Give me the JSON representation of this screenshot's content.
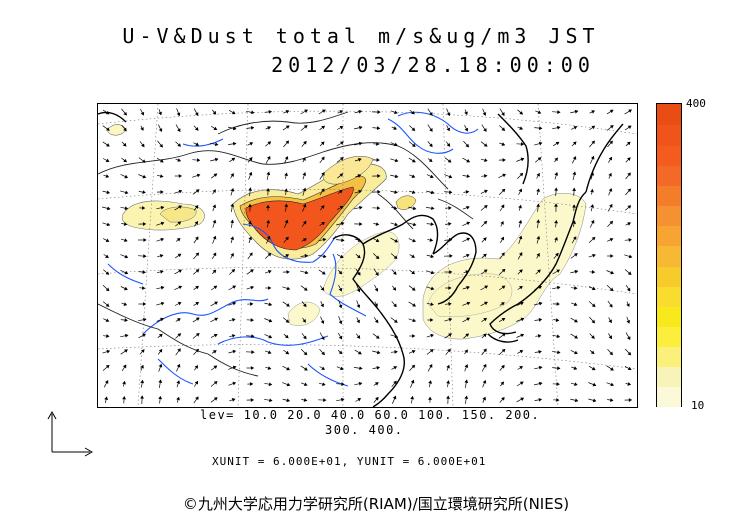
{
  "title": {
    "line1": "U-V&Dust total m/s&ug/m3 JST",
    "line2": "2012/03/28.18:00:00"
  },
  "colorbar": {
    "max_label": "400",
    "min_label": "10",
    "colors": [
      "#fbf9d8",
      "#f8f3b8",
      "#fbf07a",
      "#fbee3c",
      "#f7e91c",
      "#f9dc2d",
      "#f8cb2d",
      "#f7b833",
      "#f6a532",
      "#f59130",
      "#f47d2a",
      "#f36a26",
      "#f45b1e",
      "#f0541a",
      "#e94d14"
    ]
  },
  "contour_levels": {
    "line1": "lev= 10.0 20.0 40.0 60.0 100. 150. 200.",
    "line2": "300. 400."
  },
  "units": "XUNIT = 6.000E+01, YUNIT = 6.000E+01",
  "copyright": "©九州大学応用力学研究所(RIAM)/国立環境研究所(NIES)",
  "map_colors": {
    "coast": "#000000",
    "border": "#222222",
    "river": "#1a55ff",
    "low_dust": "#fbf8cc",
    "mid_dust": "#f7e26a",
    "high_dust": "#f2561c",
    "grid": "#888888"
  }
}
